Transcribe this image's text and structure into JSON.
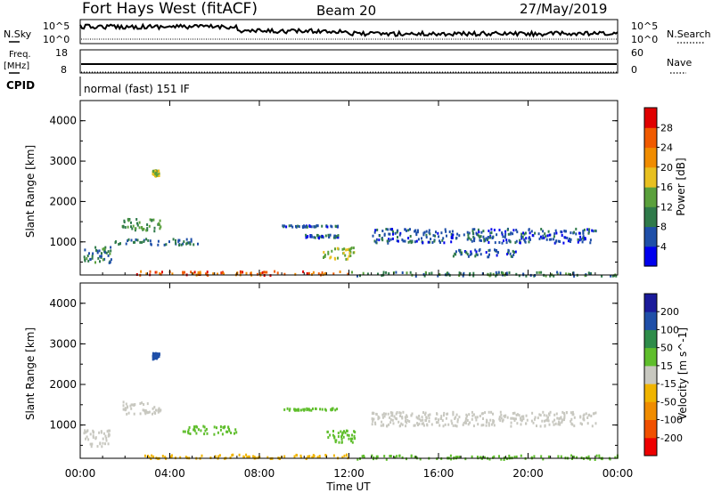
{
  "header": {
    "station": "Fort Hays West (fitACF)",
    "beam": "Beam 20",
    "date": "27/May/2019"
  },
  "noise_panel": {
    "left_label": "N.Sky",
    "right_label": "N.Search",
    "left_ticks": [
      "10^5",
      "10^0"
    ],
    "right_ticks": [
      "10^5",
      "10^0"
    ]
  },
  "freq_panel": {
    "left_label_1": "Freq.",
    "left_label_2": "[MHz]",
    "right_label": "Nave",
    "left_ticks": [
      "18",
      "8"
    ],
    "right_ticks": [
      "60",
      "0"
    ]
  },
  "cpid": {
    "label": "CPID",
    "value": "normal (fast) 151 IF"
  },
  "colors": {
    "power_scale": [
      "#0000ee",
      "#1f4fa8",
      "#2f7a4a",
      "#5aa03c",
      "#e8c020",
      "#f08c00",
      "#f05a00",
      "#e00000"
    ],
    "velocity_scale": [
      "#ee0000",
      "#f05000",
      "#f08c00",
      "#f0b400",
      "#c8c8c0",
      "#5fbe2c",
      "#2e8c4a",
      "#1f4fa8",
      "#1a1a9a"
    ]
  },
  "chart_data": [
    {
      "type": "heatmap",
      "title": "",
      "xlabel": "Time UT",
      "ylabel": "Slant Range [km]",
      "x_ticks": [
        "00:00",
        "04:00",
        "08:00",
        "12:00",
        "16:00",
        "20:00",
        "00:00"
      ],
      "y_ticks": [
        "1000",
        "2000",
        "3000",
        "4000"
      ],
      "xlim_hours": [
        0,
        24
      ],
      "ylim_km": [
        180,
        4500
      ],
      "colorbar": {
        "label": "Power [dB]",
        "ticks": [
          "4",
          "8",
          "12",
          "16",
          "20",
          "24",
          "28"
        ],
        "range": [
          0,
          30
        ]
      },
      "regions": [
        {
          "t": [
            0.1,
            1.4
          ],
          "r": [
            500,
            900
          ],
          "v": 9
        },
        {
          "t": [
            1.8,
            3.6
          ],
          "r": [
            1300,
            1600
          ],
          "v": 12
        },
        {
          "t": [
            3.2,
            3.5
          ],
          "r": [
            2650,
            2800
          ],
          "v": 17
        },
        {
          "t": [
            1.5,
            5.5
          ],
          "r": [
            950,
            1100
          ],
          "v": 8
        },
        {
          "t": [
            9.0,
            11.5
          ],
          "r": [
            1390,
            1440
          ],
          "v": 7
        },
        {
          "t": [
            10.0,
            11.5
          ],
          "r": [
            1120,
            1200
          ],
          "v": 6
        },
        {
          "t": [
            10.8,
            12.2
          ],
          "r": [
            600,
            900
          ],
          "v": 16
        },
        {
          "t": [
            13.0,
            23.0
          ],
          "r": [
            1000,
            1350
          ],
          "v": 6
        },
        {
          "t": [
            16.5,
            19.5
          ],
          "r": [
            650,
            850
          ],
          "v": 7
        },
        {
          "t": [
            2.5,
            12.0
          ],
          "r": [
            200,
            300
          ],
          "v": 25
        },
        {
          "t": [
            12.0,
            24.0
          ],
          "r": [
            180,
            280
          ],
          "v": 10
        }
      ]
    },
    {
      "type": "heatmap",
      "title": "",
      "xlabel": "Time UT",
      "ylabel": "Slant Range [km]",
      "x_ticks": [
        "00:00",
        "04:00",
        "08:00",
        "12:00",
        "16:00",
        "20:00",
        "00:00"
      ],
      "y_ticks": [
        "1000",
        "2000",
        "3000",
        "4000"
      ],
      "xlim_hours": [
        0,
        24
      ],
      "ylim_km": [
        180,
        4500
      ],
      "colorbar": {
        "label": "Velocity [m s^-1]",
        "ticks": [
          "200",
          "100",
          "50",
          "15",
          "-15",
          "-50",
          "-100",
          "-200"
        ],
        "range": [
          -250,
          250
        ]
      },
      "regions": [
        {
          "t": [
            0.1,
            1.4
          ],
          "r": [
            500,
            900
          ],
          "v": 0
        },
        {
          "t": [
            1.8,
            3.6
          ],
          "r": [
            1300,
            1600
          ],
          "v": 0
        },
        {
          "t": [
            3.2,
            3.5
          ],
          "r": [
            2650,
            2800
          ],
          "v": 150
        },
        {
          "t": [
            4.5,
            7.0
          ],
          "r": [
            800,
            1000
          ],
          "v": 20
        },
        {
          "t": [
            9.0,
            11.5
          ],
          "r": [
            1390,
            1440
          ],
          "v": 30
        },
        {
          "t": [
            11.0,
            12.3
          ],
          "r": [
            600,
            900
          ],
          "v": 25
        },
        {
          "t": [
            13.0,
            23.0
          ],
          "r": [
            1000,
            1350
          ],
          "v": 0
        },
        {
          "t": [
            2.5,
            12.0
          ],
          "r": [
            200,
            300
          ],
          "v": -35
        },
        {
          "t": [
            12.0,
            24.0
          ],
          "r": [
            180,
            280
          ],
          "v": 25
        }
      ]
    }
  ]
}
